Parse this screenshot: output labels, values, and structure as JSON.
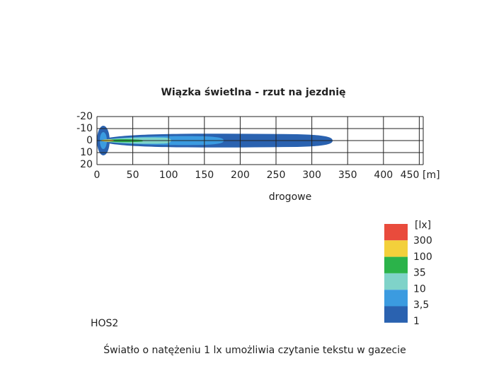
{
  "title": "Wiązka świetlna - rzut na jezdnię",
  "x_ticks": [
    "0",
    "50",
    "100",
    "150",
    "200",
    "250",
    "300",
    "350",
    "400",
    "450"
  ],
  "x_unit": "[m]",
  "y_ticks": [
    "-20",
    "-10",
    "0",
    "10",
    "20"
  ],
  "beam_label": "drogowe",
  "legend": {
    "unit": "[lx]",
    "items": [
      "300",
      "100",
      "35",
      "10",
      "3,5",
      "1"
    ]
  },
  "model": "HOS2",
  "caption": "Światło o natężeniu 1 lx umożliwia czytanie tekstu w gazecie"
}
